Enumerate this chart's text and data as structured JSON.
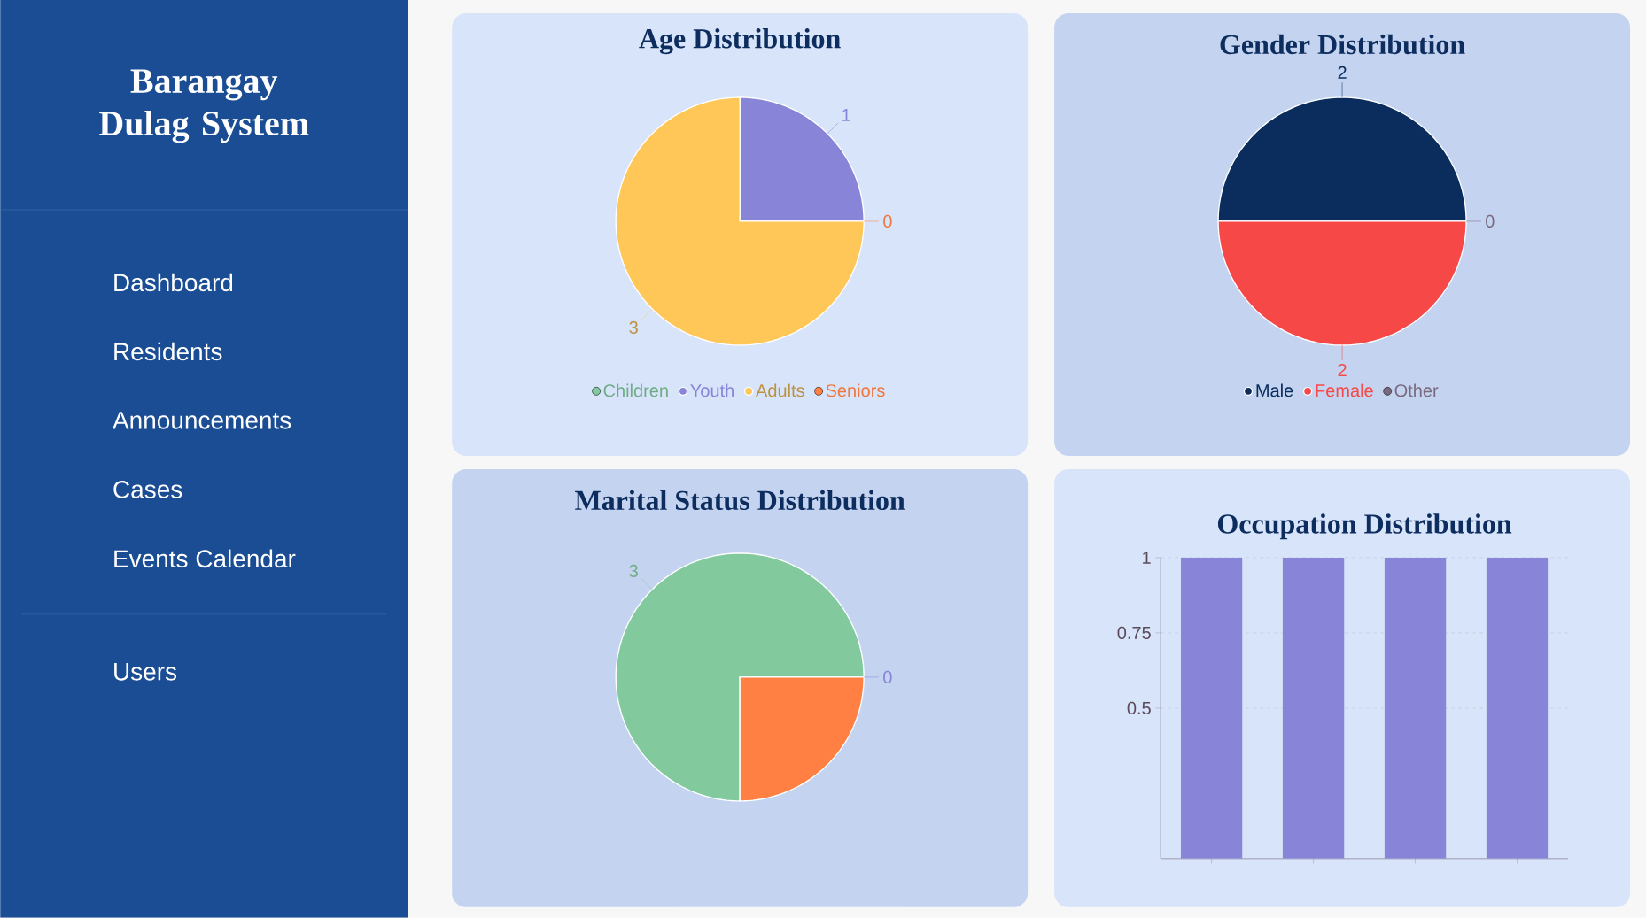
{
  "chart_data": [
    {
      "type": "other",
      "title": "Barangay Dulag System",
      "annotations": [
        "Dashboard",
        "Residents",
        "Announcements",
        "Cases",
        "Events Calendar",
        "Users"
      ]
    },
    {
      "type": "pie",
      "title": "Age Distribution",
      "categories": [
        "Children",
        "Youth",
        "Adults",
        "Seniors"
      ],
      "values": [
        0,
        1,
        3,
        0
      ],
      "colors": [
        "#82ca9d",
        "#8884d8",
        "#ffc658",
        "#ff8042"
      ],
      "value_labels": [
        null,
        "1",
        "3",
        "0"
      ],
      "legend": "bottom"
    },
    {
      "type": "pie",
      "title": "Gender Distribution",
      "categories": [
        "Male",
        "Female",
        "Other"
      ],
      "values": [
        2,
        2,
        0
      ],
      "colors": [
        "#0a2d5e",
        "#f74848",
        "#7a6a80"
      ],
      "value_labels": [
        "2",
        "2",
        "0"
      ],
      "legend": "bottom"
    },
    {
      "type": "pie",
      "title": "Marital Status Distribution",
      "categories": [
        null,
        null,
        null
      ],
      "values": [
        3,
        1,
        0
      ],
      "colors": [
        "#82ca9d",
        "#ff8042",
        "#8884d8"
      ],
      "value_labels": [
        "3",
        null,
        "0"
      ]
    },
    {
      "type": "bar",
      "title": "Occupation Distribution",
      "categories": [
        null,
        null,
        null,
        null
      ],
      "values": [
        1,
        1,
        1,
        1
      ],
      "color": "#8884d8",
      "ylim": [
        0,
        1
      ],
      "yticks": [
        0.5,
        0.75,
        1
      ],
      "grid": true
    }
  ]
}
